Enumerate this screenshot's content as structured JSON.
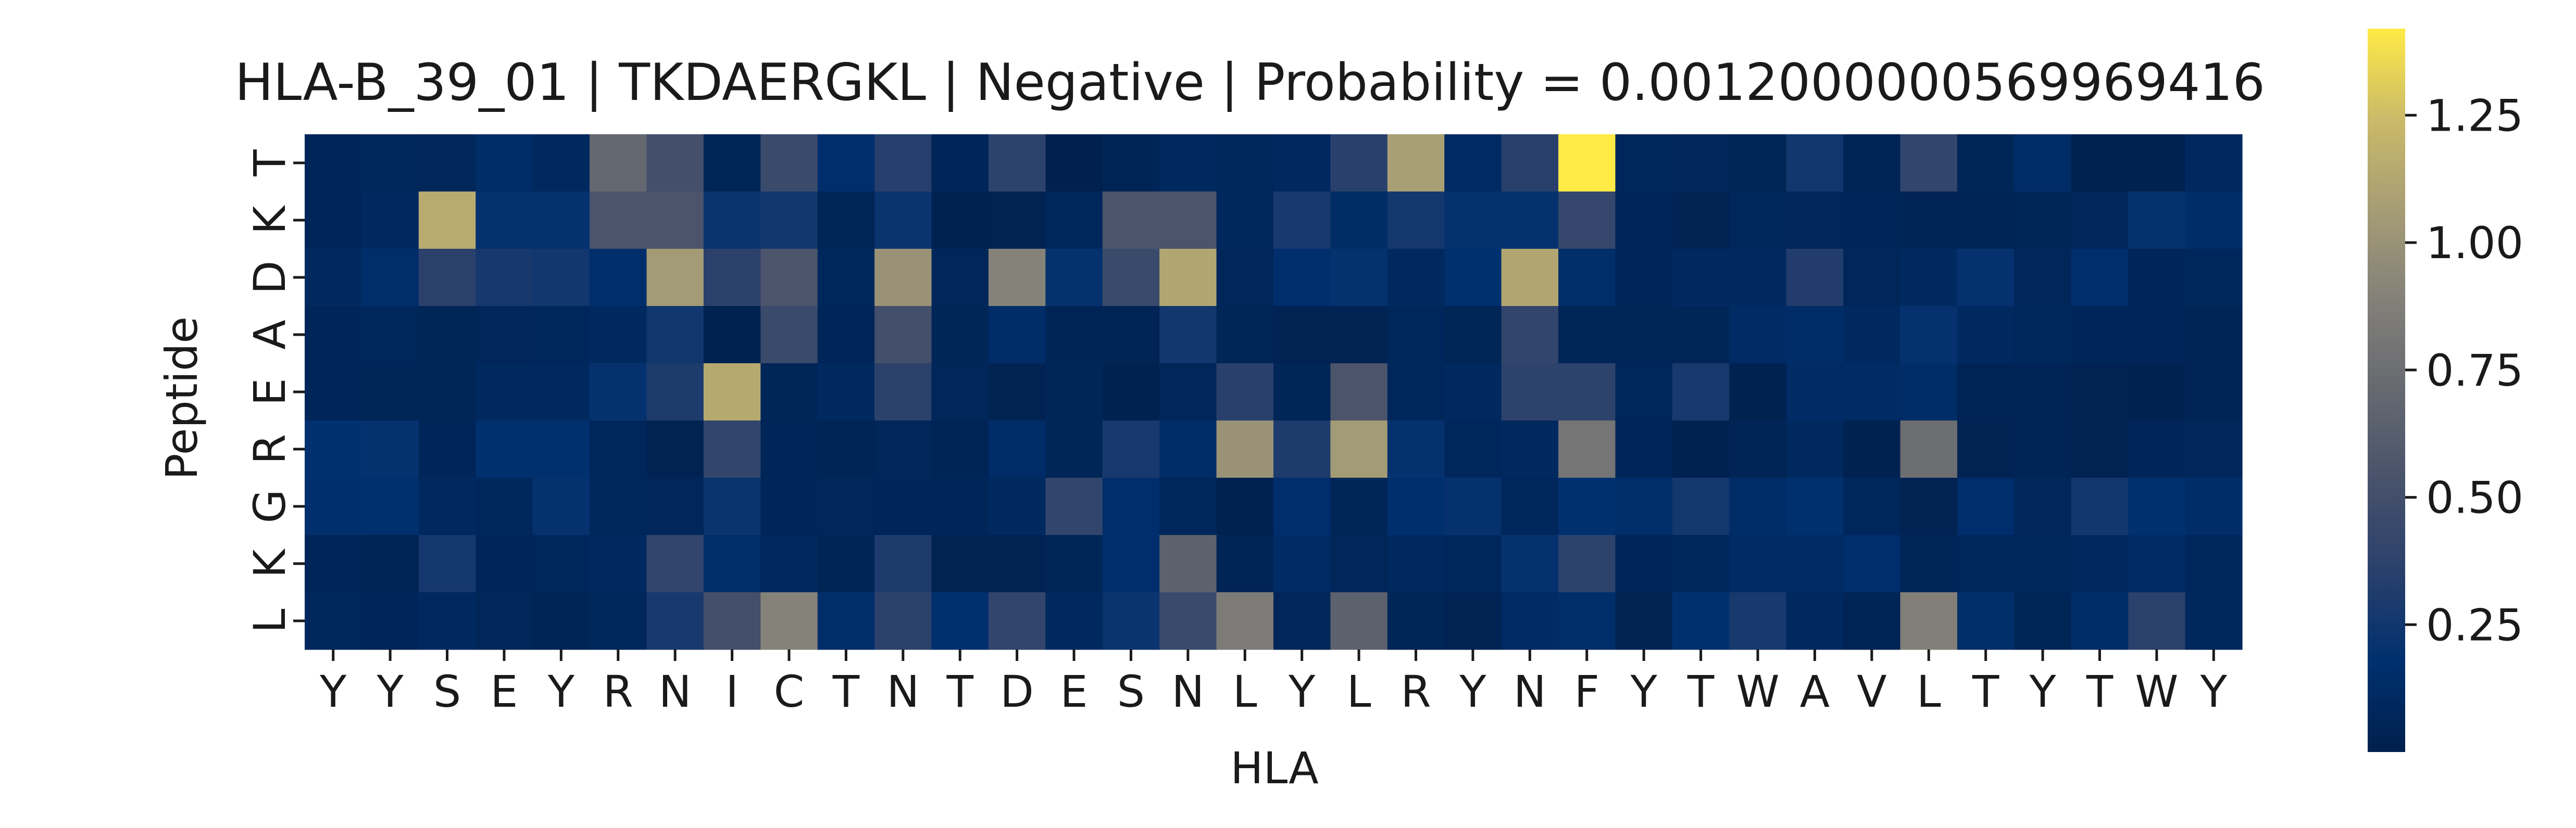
{
  "chart_data": {
    "type": "heatmap",
    "title": "HLA-B_39_01 | TKDAERGKL | Negative | Probability = 0.0012000000569969416",
    "xlabel": "HLA",
    "ylabel": "Peptide",
    "x_categories": [
      "Y",
      "Y",
      "S",
      "E",
      "Y",
      "R",
      "N",
      "I",
      "C",
      "T",
      "N",
      "T",
      "D",
      "E",
      "S",
      "N",
      "L",
      "Y",
      "L",
      "R",
      "Y",
      "N",
      "F",
      "Y",
      "T",
      "W",
      "A",
      "V",
      "L",
      "T",
      "Y",
      "T",
      "W",
      "Y"
    ],
    "y_categories": [
      "T",
      "K",
      "D",
      "A",
      "E",
      "R",
      "G",
      "K",
      "L"
    ],
    "values": [
      [
        0.06,
        0.08,
        0.07,
        0.14,
        0.1,
        0.7,
        0.5,
        0.05,
        0.45,
        0.16,
        0.34,
        0.06,
        0.38,
        0.01,
        0.04,
        0.1,
        0.08,
        0.1,
        0.35,
        1.08,
        0.11,
        0.35,
        1.42,
        0.08,
        0.07,
        0.05,
        0.25,
        0.04,
        0.4,
        0.05,
        0.14,
        0.02,
        0.02,
        0.1
      ],
      [
        0.06,
        0.1,
        1.15,
        0.2,
        0.2,
        0.55,
        0.55,
        0.22,
        0.25,
        0.05,
        0.22,
        0.02,
        0.03,
        0.08,
        0.55,
        0.55,
        0.08,
        0.28,
        0.13,
        0.26,
        0.2,
        0.2,
        0.42,
        0.06,
        0.03,
        0.08,
        0.07,
        0.06,
        0.04,
        0.04,
        0.05,
        0.07,
        0.2,
        0.14
      ],
      [
        0.1,
        0.15,
        0.36,
        0.27,
        0.25,
        0.16,
        1.05,
        0.36,
        0.55,
        0.08,
        1.0,
        0.07,
        0.9,
        0.2,
        0.45,
        1.12,
        0.07,
        0.16,
        0.2,
        0.1,
        0.18,
        1.12,
        0.15,
        0.06,
        0.1,
        0.1,
        0.32,
        0.07,
        0.1,
        0.2,
        0.07,
        0.16,
        0.06,
        0.08
      ],
      [
        0.06,
        0.08,
        0.05,
        0.07,
        0.08,
        0.1,
        0.25,
        0.02,
        0.45,
        0.06,
        0.5,
        0.05,
        0.14,
        0.04,
        0.04,
        0.25,
        0.05,
        0.03,
        0.03,
        0.08,
        0.05,
        0.4,
        0.05,
        0.05,
        0.05,
        0.12,
        0.14,
        0.1,
        0.2,
        0.1,
        0.08,
        0.06,
        0.06,
        0.04
      ],
      [
        0.06,
        0.05,
        0.05,
        0.1,
        0.1,
        0.2,
        0.3,
        1.14,
        0.05,
        0.1,
        0.36,
        0.07,
        0.03,
        0.05,
        0.02,
        0.07,
        0.35,
        0.05,
        0.55,
        0.08,
        0.1,
        0.38,
        0.38,
        0.08,
        0.28,
        0.02,
        0.12,
        0.12,
        0.14,
        0.04,
        0.04,
        0.03,
        0.02,
        0.04
      ],
      [
        0.18,
        0.2,
        0.06,
        0.18,
        0.18,
        0.08,
        0.03,
        0.4,
        0.06,
        0.04,
        0.07,
        0.04,
        0.14,
        0.05,
        0.28,
        0.14,
        1.0,
        0.3,
        1.05,
        0.2,
        0.08,
        0.1,
        0.8,
        0.06,
        0.02,
        0.04,
        0.1,
        0.02,
        0.75,
        0.03,
        0.04,
        0.03,
        0.06,
        0.07
      ],
      [
        0.17,
        0.18,
        0.1,
        0.08,
        0.2,
        0.08,
        0.07,
        0.22,
        0.06,
        0.07,
        0.06,
        0.06,
        0.1,
        0.4,
        0.16,
        0.08,
        0.02,
        0.16,
        0.05,
        0.17,
        0.2,
        0.08,
        0.18,
        0.15,
        0.26,
        0.14,
        0.18,
        0.08,
        0.03,
        0.16,
        0.07,
        0.25,
        0.18,
        0.14
      ],
      [
        0.06,
        0.04,
        0.26,
        0.06,
        0.08,
        0.1,
        0.4,
        0.15,
        0.1,
        0.04,
        0.3,
        0.03,
        0.03,
        0.05,
        0.16,
        0.65,
        0.04,
        0.12,
        0.07,
        0.1,
        0.08,
        0.2,
        0.38,
        0.06,
        0.08,
        0.12,
        0.12,
        0.16,
        0.05,
        0.08,
        0.08,
        0.1,
        0.12,
        0.08
      ],
      [
        0.08,
        0.06,
        0.1,
        0.07,
        0.04,
        0.08,
        0.28,
        0.5,
        0.9,
        0.15,
        0.36,
        0.18,
        0.4,
        0.1,
        0.22,
        0.45,
        0.85,
        0.07,
        0.65,
        0.05,
        0.03,
        0.12,
        0.15,
        0.03,
        0.18,
        0.28,
        0.1,
        0.04,
        0.88,
        0.15,
        0.05,
        0.14,
        0.36,
        0.08
      ]
    ],
    "colorbar": {
      "colormap": "cividis",
      "vmin": 0.0,
      "vmax": 1.42,
      "ticks": [
        0.25,
        0.5,
        0.75,
        1.0,
        1.25
      ],
      "tick_labels": [
        "0.25",
        "0.50",
        "0.75",
        "1.00",
        "1.25"
      ]
    },
    "grid": false,
    "legend": "colorbar-right"
  }
}
